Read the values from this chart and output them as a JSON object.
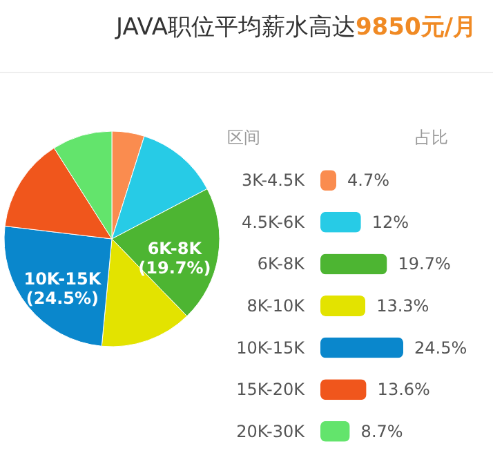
{
  "chart_data": [
    {
      "type": "pie",
      "title": "JAVA职位平均薪水高达9850元/月",
      "categories": [
        null,
        null,
        "6K-8K",
        null,
        "10K-15K",
        null,
        null
      ],
      "values": [
        4.7,
        12,
        19.7,
        13.3,
        24.5,
        13.6,
        8.7
      ],
      "colors": [
        "#fa8c4f",
        "#27cbe6",
        "#4db532",
        "#e3e300",
        "#0a87cc",
        "#f0561c",
        "#63e46c"
      ],
      "value_labels": [
        null,
        null,
        "(19.7%)",
        null,
        "(24.5%)",
        null,
        null
      ]
    },
    {
      "type": "bar",
      "orientation": "horizontal",
      "ylabel": "区间",
      "annotations": [
        "占比"
      ],
      "categories": [
        "3K-4.5K",
        "4.5K-6K",
        "6K-8K",
        "8K-10K",
        "10K-15K",
        "15K-20K",
        "20K-30K"
      ],
      "values": [
        4.7,
        12,
        19.7,
        13.3,
        24.5,
        13.6,
        8.7
      ],
      "colors": [
        "#fa8c4f",
        "#27cbe6",
        "#4db532",
        "#e3e300",
        "#0a87cc",
        "#f0561c",
        "#63e46c"
      ],
      "value_labels": [
        "4.7%",
        "12%",
        "19.7%",
        "13.3%",
        "24.5%",
        "13.6%",
        "8.7%"
      ]
    }
  ]
}
